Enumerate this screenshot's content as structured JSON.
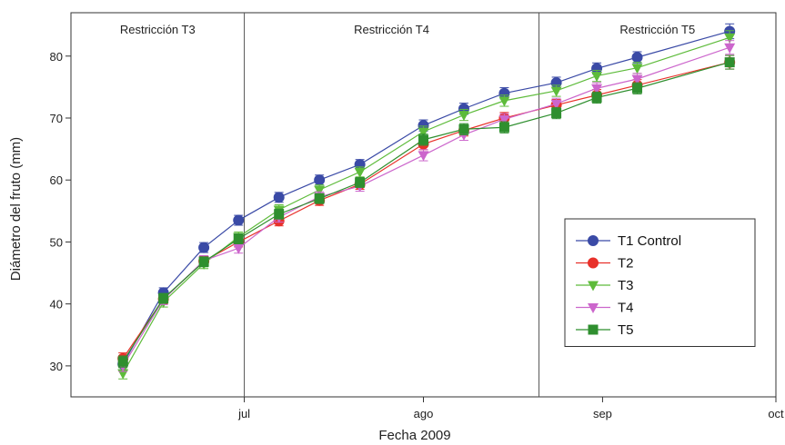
{
  "chart_data": {
    "type": "line",
    "xlabel": "Fecha 2009",
    "ylabel": "Diámetro del fruto (mm)",
    "ylim": [
      25,
      87
    ],
    "yticks": [
      30,
      40,
      50,
      60,
      70,
      80
    ],
    "xlim": [
      "2009-06-01",
      "2009-10-01"
    ],
    "xticks": [
      {
        "date": "2009-07-01",
        "label": "jul"
      },
      {
        "date": "2009-08-01",
        "label": "ago"
      },
      {
        "date": "2009-09-01",
        "label": "sep"
      },
      {
        "date": "2009-10-01",
        "label": "oct"
      }
    ],
    "grid": false,
    "legend_position": "bottom-right",
    "regions": [
      {
        "label": "Restricción T3",
        "start": "2009-06-01",
        "end": "2009-07-01"
      },
      {
        "label": "Restricción T4",
        "start": "2009-07-01",
        "end": "2009-08-21"
      },
      {
        "label": "Restricción T5",
        "start": "2009-08-21",
        "end": "2009-10-01"
      }
    ],
    "x": [
      "2009-06-10",
      "2009-06-17",
      "2009-06-24",
      "2009-06-30",
      "2009-07-07",
      "2009-07-14",
      "2009-07-21",
      "2009-08-01",
      "2009-08-08",
      "2009-08-15",
      "2009-08-24",
      "2009-08-31",
      "2009-09-07",
      "2009-09-23"
    ],
    "series": [
      {
        "name": "T1 Control",
        "color": "#3a4aa6",
        "marker": "circle",
        "values": [
          30.3,
          41.8,
          49.1,
          53.5,
          57.2,
          60.0,
          62.5,
          68.8,
          71.5,
          74.0,
          75.7,
          78.0,
          79.8,
          84.0
        ],
        "errors": [
          0.9,
          0.8,
          0.8,
          0.8,
          0.8,
          0.8,
          0.8,
          0.9,
          0.9,
          0.9,
          0.9,
          0.9,
          0.9,
          1.2
        ]
      },
      {
        "name": "T2",
        "color": "#e8312a",
        "marker": "circle",
        "values": [
          31.2,
          40.8,
          46.9,
          50.0,
          53.4,
          56.7,
          59.3,
          65.8,
          68.0,
          70.0,
          72.1,
          73.7,
          75.3,
          79.0
        ],
        "errors": [
          0.9,
          0.8,
          0.8,
          0.8,
          0.8,
          0.8,
          0.8,
          0.9,
          0.9,
          0.9,
          0.9,
          0.9,
          0.9,
          1.1
        ]
      },
      {
        "name": "T3",
        "color": "#5dbb3a",
        "marker": "triangle-down",
        "values": [
          28.8,
          40.3,
          46.5,
          50.8,
          55.2,
          58.4,
          61.3,
          67.8,
          70.5,
          72.8,
          74.4,
          76.8,
          78.1,
          83.0
        ],
        "errors": [
          0.9,
          0.8,
          0.8,
          0.8,
          0.8,
          0.8,
          0.8,
          0.9,
          0.9,
          0.9,
          0.9,
          0.9,
          0.9,
          1.1
        ]
      },
      {
        "name": "T4",
        "color": "#cc66cc",
        "marker": "triangle-down",
        "values": [
          30.0,
          40.7,
          47.0,
          49.0,
          54.0,
          57.3,
          59.0,
          64.0,
          67.3,
          69.8,
          72.3,
          74.8,
          76.3,
          81.4
        ],
        "errors": [
          0.9,
          0.8,
          0.8,
          0.8,
          0.8,
          0.8,
          0.8,
          0.9,
          0.9,
          0.9,
          0.9,
          0.9,
          0.9,
          1.1
        ]
      },
      {
        "name": "T5",
        "color": "#2f8f2f",
        "marker": "square",
        "values": [
          30.7,
          40.9,
          46.8,
          50.5,
          54.5,
          57.0,
          59.6,
          66.5,
          68.2,
          68.5,
          70.8,
          73.3,
          74.8,
          79.0
        ],
        "errors": [
          0.9,
          0.8,
          0.8,
          0.8,
          0.8,
          0.8,
          0.8,
          0.9,
          0.9,
          0.9,
          0.9,
          0.9,
          0.9,
          1.1
        ]
      }
    ]
  }
}
